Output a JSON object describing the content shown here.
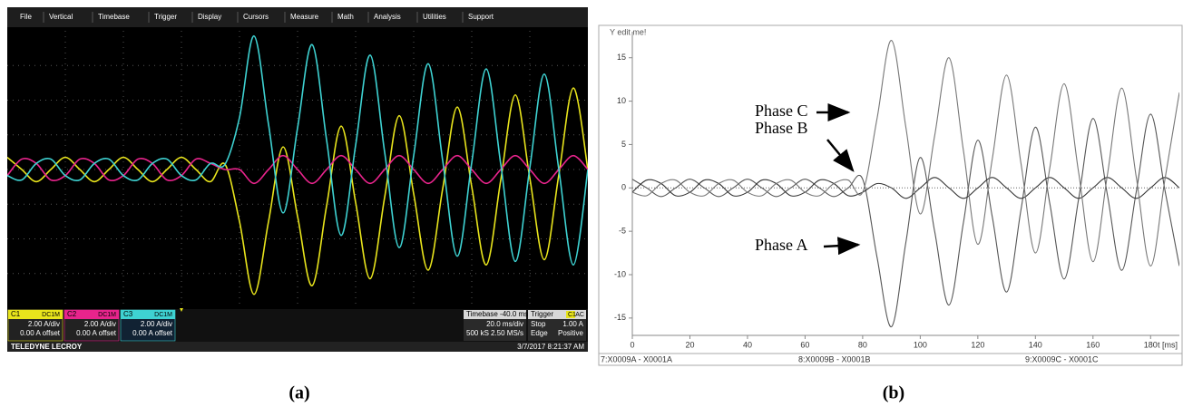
{
  "chart_data": [
    {
      "type": "line",
      "menu": [
        "File",
        "Vertical",
        "Timebase",
        "Trigger",
        "Display",
        "Cursors",
        "Measure",
        "Math",
        "Analysis",
        "Utilities",
        "Support"
      ],
      "x": [
        0,
        5,
        10,
        15,
        20,
        25,
        30,
        35,
        40,
        45,
        50,
        55,
        60,
        65,
        70,
        75,
        80,
        85,
        90,
        95,
        100,
        105,
        110,
        115,
        120,
        125,
        130,
        135,
        140,
        145,
        150,
        155,
        160,
        165,
        170,
        175,
        180,
        185,
        190,
        195,
        200
      ],
      "xlim": [
        0,
        200
      ],
      "ylim": [
        -8,
        8
      ],
      "series": [
        {
          "name": "C1",
          "color": "#e8e41c",
          "values": [
            0.7,
            0,
            -0.7,
            0,
            0.7,
            0,
            -0.7,
            0,
            0.7,
            0,
            -0.7,
            0,
            0.7,
            0,
            -0.7,
            0.3,
            -3,
            -7.2,
            -3,
            1.3,
            -2.7,
            -6.7,
            -2.1,
            2.5,
            -1.9,
            -6.3,
            -1.6,
            3.1,
            -1.4,
            -5.8,
            -1.1,
            3.6,
            -1,
            -5.5,
            -0.6,
            4.3,
            -0.5,
            -5.2,
            -0.3,
            4.7,
            0
          ]
        },
        {
          "name": "C2",
          "color": "#e8248c",
          "values": [
            -0.35,
            0.6,
            0.35,
            -0.6,
            -0.35,
            0.6,
            0.35,
            -0.6,
            -0.35,
            0.6,
            0.35,
            -0.6,
            -0.35,
            0.6,
            0.35,
            0,
            0,
            -0.8,
            0,
            0.8,
            0,
            -0.8,
            0,
            0.8,
            0,
            -0.8,
            0,
            0.8,
            0,
            -0.8,
            0,
            0.8,
            0,
            -0.8,
            0,
            0.8,
            0,
            -0.8,
            0,
            0.8,
            0
          ]
        },
        {
          "name": "C3",
          "color": "#3ed2d2",
          "values": [
            -0.35,
            -0.6,
            0.35,
            0.6,
            -0.35,
            -0.6,
            0.35,
            0.6,
            -0.35,
            -0.6,
            0.35,
            0.6,
            -0.35,
            -0.6,
            0.35,
            0.3,
            3,
            7.7,
            2.6,
            -2.5,
            2.4,
            7.2,
            1.7,
            -3.8,
            1.4,
            6.6,
            1,
            -4.5,
            0.8,
            6.1,
            0.5,
            -5,
            0.4,
            5.8,
            0.3,
            -5.3,
            0.1,
            5.5,
            0,
            -5.5,
            0
          ]
        }
      ],
      "channels": [
        {
          "coupling": "DC1M",
          "scale": "2.00 A/div",
          "offset": "0.00 A offset"
        },
        {
          "coupling": "DC1M",
          "scale": "2.00 A/div",
          "offset": "0.00 A offset"
        },
        {
          "coupling": "DC1M",
          "scale": "2.00 A/div",
          "offset": "0.00 A offset"
        }
      ],
      "timebase": {
        "title": "Timebase -40.0 ms",
        "scale": "20.0 ms/div",
        "samples": "500 kS",
        "rate": "2.50 MS/s"
      },
      "trigger": {
        "title": "Trigger",
        "source": "C1",
        "coupling": "AC",
        "mode": "Stop",
        "level": "1.00 A",
        "type": "Edge",
        "slope": "Positive"
      },
      "brand": "TELEDYNE LECROY",
      "timestamp": "3/7/2017 8:21:37 AM",
      "label": "(a)"
    },
    {
      "type": "line",
      "y_label": "Y edit me!",
      "x_label": "t [ms]",
      "x": [
        0,
        5,
        10,
        15,
        20,
        25,
        30,
        35,
        40,
        45,
        50,
        55,
        60,
        65,
        70,
        75,
        80,
        85,
        90,
        95,
        100,
        105,
        110,
        115,
        120,
        125,
        130,
        135,
        140,
        145,
        150,
        155,
        160,
        165,
        170,
        175,
        180,
        185,
        190
      ],
      "xlim": [
        0,
        190
      ],
      "ylim": [
        -17,
        18
      ],
      "xticks": [
        0,
        20,
        40,
        60,
        80,
        100,
        120,
        140,
        160,
        180
      ],
      "yticks": [
        -15,
        -10,
        -5,
        0,
        5,
        10,
        15
      ],
      "zero_line": true,
      "series": [
        {
          "name": "7:X0009A - X0001A",
          "color": "#555555",
          "values": [
            1,
            0,
            -1,
            0,
            1,
            0,
            -1,
            0,
            1,
            0,
            -1,
            0,
            1,
            0,
            -1,
            0,
            1,
            -8,
            -16,
            -6.3,
            3.5,
            -5,
            -13.5,
            -4,
            5.5,
            -3.3,
            -12,
            -2.5,
            7,
            -1.8,
            -10.5,
            -1.3,
            8,
            -0.8,
            -9.5,
            -0.5,
            8.5,
            -0.3,
            -9
          ]
        },
        {
          "name": "8:X0009B - X0001B",
          "color": "#333333",
          "values": [
            -0.5,
            0.9,
            0.5,
            -0.9,
            -0.5,
            0.9,
            0.5,
            -0.9,
            -0.5,
            0.9,
            0.5,
            -0.9,
            -0.5,
            0.9,
            0.5,
            -0.9,
            -0.5,
            0.5,
            0,
            -1.2,
            0,
            1.2,
            0,
            -1.2,
            0,
            1.2,
            0,
            -1.2,
            0,
            1.2,
            0,
            -1.2,
            0,
            1.2,
            0,
            -1.2,
            0,
            1.2,
            0
          ]
        },
        {
          "name": "9:X0009C - X0001C",
          "color": "#777777",
          "values": [
            -0.5,
            -0.9,
            0.5,
            0.9,
            -0.5,
            -0.9,
            0.5,
            0.9,
            -0.5,
            -0.9,
            0.5,
            0.9,
            -0.5,
            -0.9,
            0.5,
            0.9,
            -0.5,
            8,
            17,
            7,
            -3,
            6,
            15,
            4.3,
            -6.5,
            3.3,
            13,
            2.8,
            -7.5,
            2.3,
            12,
            1.8,
            -8.5,
            1.5,
            11.5,
            1.3,
            -9,
            1,
            11
          ]
        }
      ],
      "annotations": [
        "Phase C",
        "Phase B",
        "Phase A"
      ],
      "label": "(b)"
    }
  ]
}
